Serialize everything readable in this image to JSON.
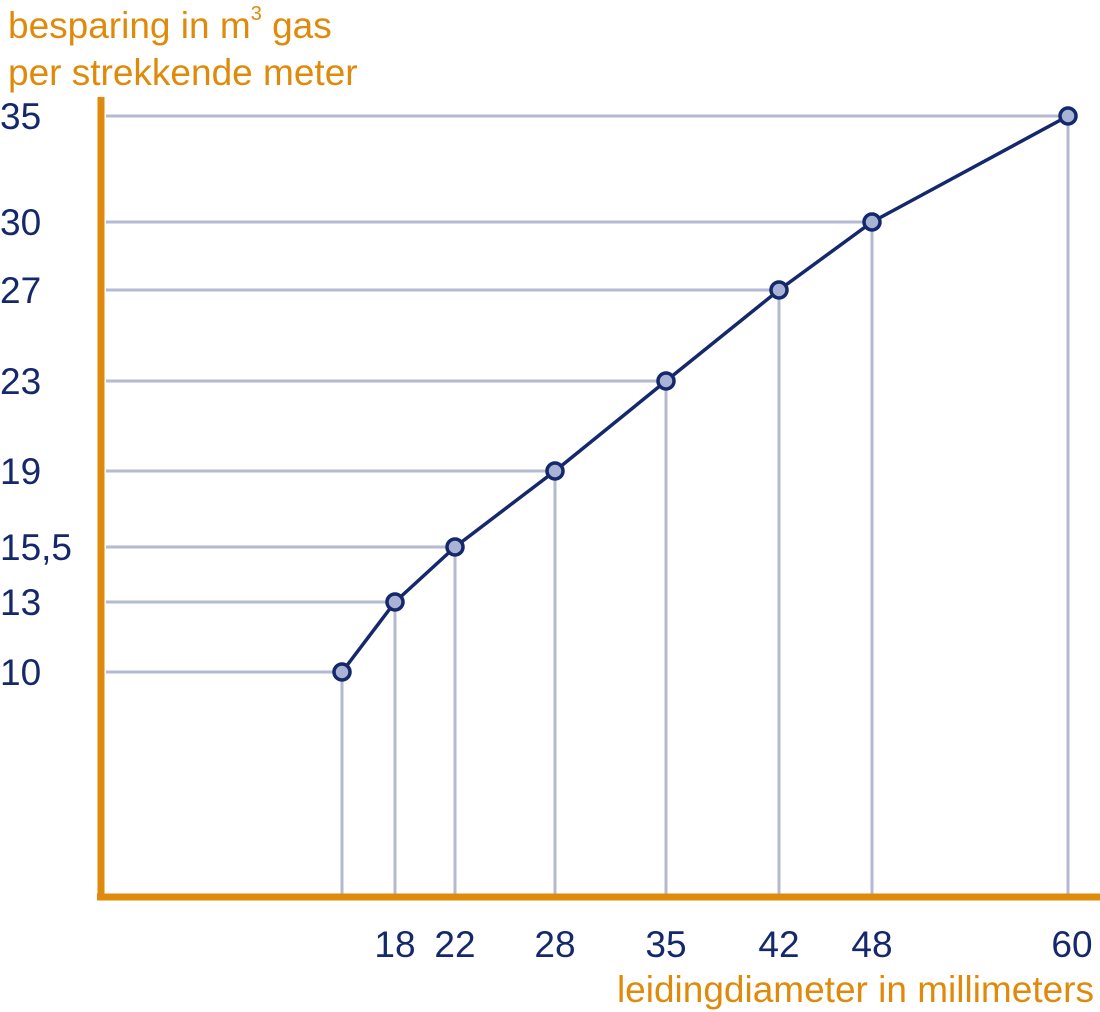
{
  "chart_data": {
    "type": "line",
    "title": "",
    "ylabel_lines": [
      "besparing in m",
      "per strekkende meter"
    ],
    "ylabel_superscript": "3",
    "ylabel_suffix": " gas",
    "xlabel": "leidingdiameter in millimeters",
    "x": [
      15,
      18,
      22,
      28,
      35,
      42,
      48,
      60
    ],
    "y": [
      10,
      13,
      15.5,
      19,
      23,
      27,
      30,
      35
    ],
    "x_tick_labels": [
      "18",
      "22",
      "28",
      "35",
      "42",
      "48",
      "60"
    ],
    "y_tick_labels": [
      "10",
      "13",
      "15,5",
      "19",
      "23",
      "27",
      "30",
      "35"
    ],
    "grid": "drop-lines",
    "colors": {
      "axis": "#e08a0b",
      "line": "#15286b",
      "marker_fill": "#a9b3d5",
      "guide": "#b5bad3",
      "tick_text": "#15286b"
    }
  }
}
